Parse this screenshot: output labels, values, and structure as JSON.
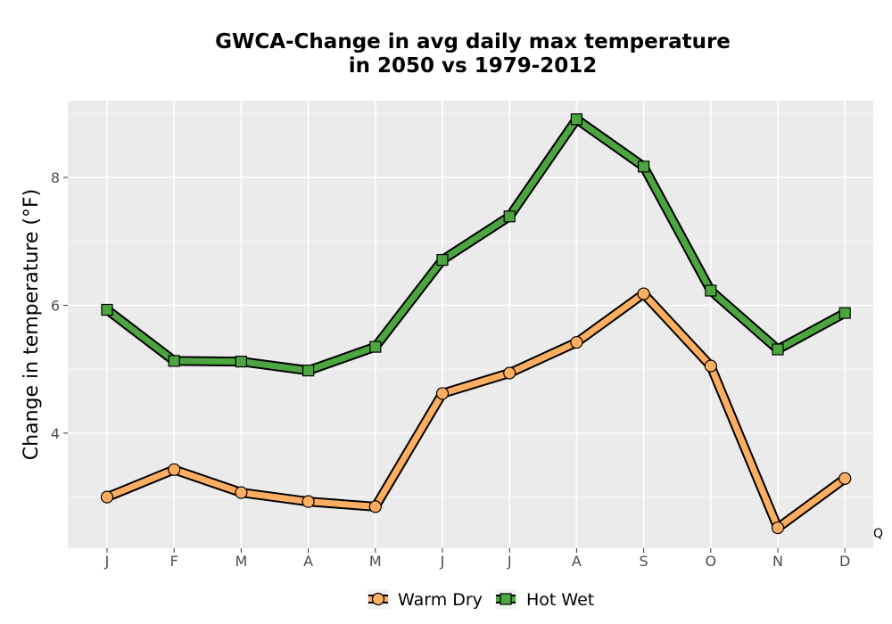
{
  "chart_data": {
    "type": "line",
    "title_line1": "GWCA-Change in avg daily max temperature",
    "title_line2": "in 2050 vs 1979-2012",
    "xlabel": "",
    "ylabel": "Change in temperature (°F)",
    "categories": [
      "J",
      "F",
      "M",
      "A",
      "M",
      "J",
      "J",
      "A",
      "S",
      "O",
      "N",
      "D"
    ],
    "ylim": [
      2.2,
      9.2
    ],
    "yticks": [
      4,
      6,
      8
    ],
    "grid": true,
    "legend_position": "bottom",
    "corner_note": "Q",
    "series": [
      {
        "name": "Warm Dry",
        "color": "#fdae61",
        "marker": "circle",
        "values": [
          3.0,
          3.43,
          3.07,
          2.93,
          2.85,
          4.62,
          4.94,
          5.42,
          6.18,
          5.05,
          2.52,
          3.29
        ]
      },
      {
        "name": "Hot Wet",
        "color": "#4ca540",
        "marker": "square",
        "values": [
          5.93,
          5.13,
          5.12,
          4.98,
          5.35,
          6.71,
          7.39,
          8.91,
          8.17,
          6.23,
          5.31,
          5.88
        ]
      }
    ]
  }
}
